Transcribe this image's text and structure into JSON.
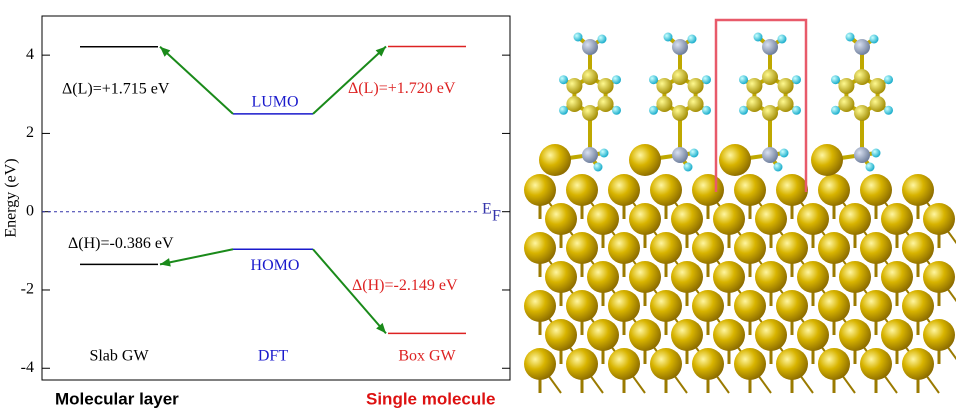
{
  "chart_data": {
    "type": "energy-levels",
    "ylabel": "Energy (eV)",
    "ylim": [
      -4.3,
      5
    ],
    "yticks": [
      -4,
      -2,
      0,
      2,
      4
    ],
    "reference_line": {
      "value": 0,
      "label": "E",
      "subscript": "F",
      "color": "#3333aa"
    },
    "arrow_color": "#1a8a1a",
    "columns": [
      {
        "name": "Slab GW",
        "color": "#000000",
        "lumo": 4.215,
        "homo": -1.346,
        "lumo_label": "Δ(L)=+1.715 eV",
        "homo_label": "Δ(H)=-0.386 eV"
      },
      {
        "name": "DFT",
        "color": "#1a1acc",
        "lumo": 2.5,
        "homo": -0.96,
        "lumo_label": "LUMO",
        "homo_label": "HOMO"
      },
      {
        "name": "Box GW",
        "color": "#dd2222",
        "lumo": 4.22,
        "homo": -3.109,
        "lumo_label": "Δ(L)=+1.720 eV",
        "homo_label": "Δ(H)=-2.149 eV"
      }
    ],
    "captions": [
      {
        "text": "Molecular layer",
        "color": "#000000"
      },
      {
        "text": "Single molecule",
        "color": "#dd1111"
      }
    ]
  }
}
